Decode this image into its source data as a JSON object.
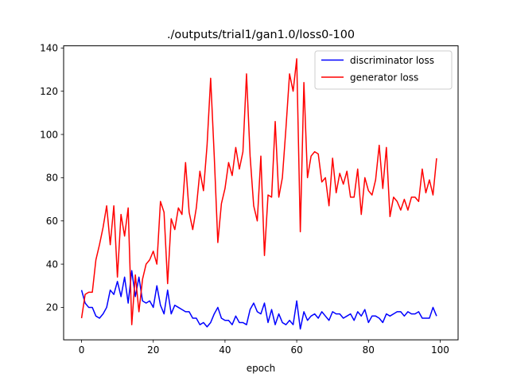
{
  "chart_data": {
    "type": "line",
    "title": "./outputs/trial1/gan1.0/loss0-100",
    "xlabel": "epoch",
    "ylabel": "",
    "xlim": [
      -5,
      105
    ],
    "ylim": [
      5,
      141
    ],
    "xticks": [
      0,
      20,
      40,
      60,
      80,
      100
    ],
    "yticks": [
      20,
      40,
      60,
      80,
      100,
      120,
      140
    ],
    "legend_position": "top-right",
    "x": [
      0,
      1,
      2,
      3,
      4,
      5,
      6,
      7,
      8,
      9,
      10,
      11,
      12,
      13,
      14,
      15,
      16,
      17,
      18,
      19,
      20,
      21,
      22,
      23,
      24,
      25,
      26,
      27,
      28,
      29,
      30,
      31,
      32,
      33,
      34,
      35,
      36,
      37,
      38,
      39,
      40,
      41,
      42,
      43,
      44,
      45,
      46,
      47,
      48,
      49,
      50,
      51,
      52,
      53,
      54,
      55,
      56,
      57,
      58,
      59,
      60,
      61,
      62,
      63,
      64,
      65,
      66,
      67,
      68,
      69,
      70,
      71,
      72,
      73,
      74,
      75,
      76,
      77,
      78,
      79,
      80,
      81,
      82,
      83,
      84,
      85,
      86,
      87,
      88,
      89,
      90,
      91,
      92,
      93,
      94,
      95,
      96,
      97,
      98,
      99
    ],
    "series": [
      {
        "name": "discriminator loss",
        "color": "#0000ff",
        "values": [
          28,
          22,
          20,
          20,
          16,
          15,
          17,
          20,
          28,
          26,
          32,
          25,
          34,
          22,
          37,
          25,
          34,
          23,
          22,
          23,
          20,
          30,
          21,
          17,
          28,
          17,
          21,
          20,
          19,
          18,
          18,
          15,
          15,
          12,
          13,
          11,
          13,
          17,
          20,
          15,
          14,
          14,
          12,
          16,
          13,
          13,
          12,
          19,
          22,
          18,
          17,
          22,
          13,
          19,
          12,
          17,
          13,
          12,
          14,
          12,
          23,
          10,
          18,
          14,
          16,
          17,
          15,
          18,
          16,
          14,
          18,
          17,
          17,
          15,
          16,
          17,
          14,
          18,
          16,
          19,
          13,
          16,
          16,
          15,
          13,
          17,
          16,
          17,
          18,
          18,
          16,
          18,
          17,
          17,
          18,
          15,
          15,
          15,
          20,
          16
        ]
      },
      {
        "name": "generator loss",
        "color": "#ff0000",
        "values": [
          15,
          26,
          27,
          27,
          42,
          49,
          57,
          67,
          49,
          67,
          34,
          63,
          53,
          66,
          12,
          35,
          18,
          33,
          40,
          42,
          46,
          40,
          69,
          64,
          31,
          61,
          56,
          66,
          63,
          87,
          64,
          56,
          66,
          83,
          74,
          95,
          126,
          90,
          50,
          68,
          75,
          87,
          81,
          94,
          84,
          92,
          128,
          90,
          67,
          60,
          90,
          44,
          72,
          71,
          106,
          71,
          80,
          103,
          128,
          120,
          135,
          55,
          124,
          80,
          90,
          92,
          91,
          78,
          80,
          67,
          89,
          73,
          82,
          77,
          83,
          71,
          71,
          84,
          63,
          80,
          74,
          72,
          79,
          95,
          75,
          94,
          62,
          71,
          69,
          65,
          70,
          65,
          71,
          71,
          69,
          84,
          73,
          79,
          72,
          89
        ]
      }
    ]
  }
}
